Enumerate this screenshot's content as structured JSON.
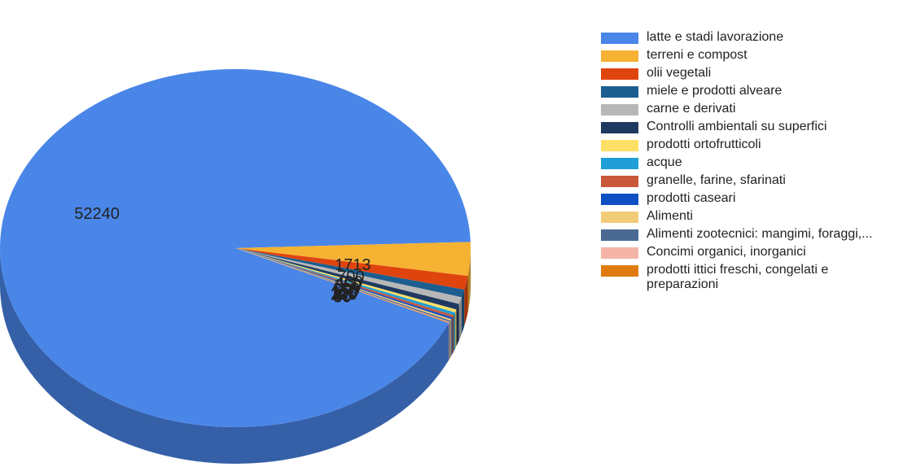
{
  "chart_data": {
    "type": "pie3d",
    "categories": [
      "latte e stadi lavorazione",
      "terreni e compost",
      "olii vegetali",
      "miele e prodotti alveare",
      "carne e derivati",
      "Controlli ambientali su superfici",
      "prodotti ortofrutticoli",
      "acque",
      "granelle, farine, sfarinati",
      "prodotti caseari",
      "Alimenti",
      "Alimenti zootecnici: mangimi, foraggi,...",
      "Concimi organici, inorganici",
      "prodotti ittici freschi, congelati e preparazioni"
    ],
    "values": [
      52240,
      1713,
      700,
      400,
      350,
      300,
      150,
      150,
      120,
      100,
      80,
      70,
      40,
      30
    ],
    "colors": [
      "#4a86e8",
      "#f6b233",
      "#e0440e",
      "#1c5e8f",
      "#b7b7b7",
      "#1f3a60",
      "#ffe066",
      "#1f9fd6",
      "#c9573a",
      "#0f4fc4",
      "#f3cc7a",
      "#4a6a93",
      "#f4b5a8",
      "#e07b10"
    ],
    "legend": "right"
  }
}
